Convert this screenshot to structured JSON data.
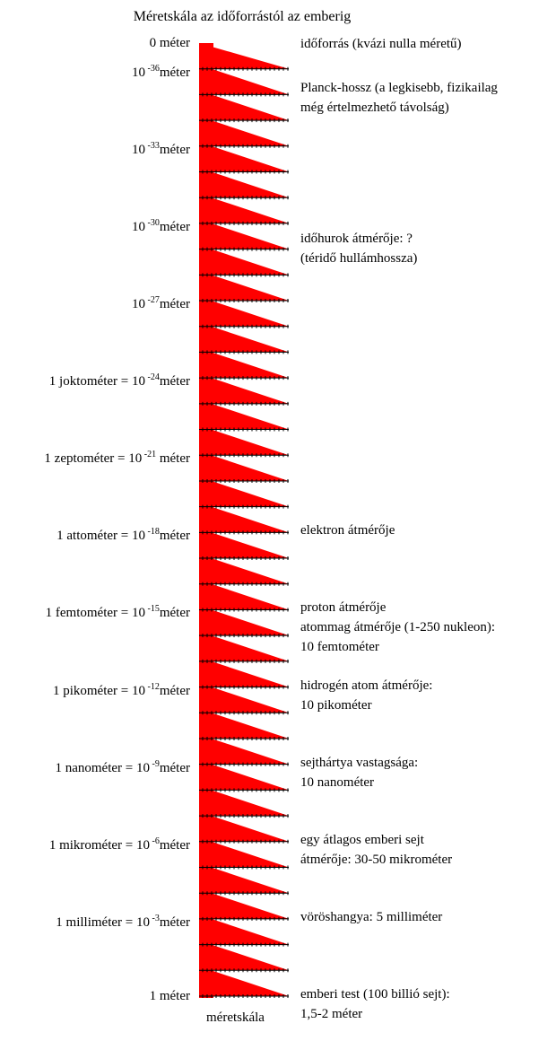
{
  "title": "Méretskála az időforrástól az emberig",
  "scale_label": "méretskála",
  "colors": {
    "fill": "#ff0000",
    "tick": "#000000"
  },
  "triangle_count": 37,
  "left_labels": [
    {
      "prefix": "0 méter",
      "exp": "",
      "suffix": "",
      "level": 0
    },
    {
      "prefix": "10",
      "exp": "-36",
      "suffix": "méter",
      "level": 1
    },
    {
      "prefix": "10",
      "exp": "-33",
      "suffix": "méter",
      "level": 4
    },
    {
      "prefix": "10",
      "exp": "-30",
      "suffix": "méter",
      "level": 7
    },
    {
      "prefix": "10",
      "exp": "-27",
      "suffix": "méter",
      "level": 10
    },
    {
      "prefix": "1 joktométer = 10",
      "exp": "-24",
      "suffix": "méter",
      "level": 13
    },
    {
      "prefix": "1 zeptométer = 10",
      "exp": "-21",
      "suffix": " méter",
      "level": 16
    },
    {
      "prefix": "1 attométer = 10",
      "exp": "-18",
      "suffix": "méter",
      "level": 19
    },
    {
      "prefix": "1 femtométer = 10",
      "exp": "-15",
      "suffix": "méter",
      "level": 22
    },
    {
      "prefix": "1 pikométer = 10",
      "exp": "-12",
      "suffix": "méter",
      "level": 25
    },
    {
      "prefix": "1 nanométer = 10",
      "exp": "-9",
      "suffix": "méter",
      "level": 28
    },
    {
      "prefix": "1 mikrométer = 10",
      "exp": "-6",
      "suffix": "méter",
      "level": 31
    },
    {
      "prefix": "1 milliméter = 10",
      "exp": "-3",
      "suffix": "méter",
      "level": 34
    },
    {
      "prefix": "1 méter",
      "exp": "",
      "suffix": "",
      "level": 37
    }
  ],
  "annotations": [
    {
      "lines": [
        "időforrás (kvázi nulla méretű)"
      ],
      "level": 0
    },
    {
      "lines": [
        "Planck-hossz (a legkisebb, fizikailag",
        "még értelmezhető távolság)"
      ],
      "level": 1
    },
    {
      "lines": [
        "időhurok átmérője: ?",
        "(téridő hullámhossza)"
      ],
      "level": 7
    },
    {
      "lines": [
        "elektron átmérője"
      ],
      "level": 19
    },
    {
      "lines": [
        "proton átmérője",
        "atommag átmérője (1-250 nukleon):",
        "10 femtométer"
      ],
      "level": 22
    },
    {
      "lines": [
        "hidrogén atom átmérője:",
        "10 pikométer"
      ],
      "level": 25
    },
    {
      "lines": [
        "sejthártya vastagsága:",
        "10 nanométer"
      ],
      "level": 28
    },
    {
      "lines": [
        "egy átlagos emberi sejt",
        "átmérője: 30-50 mikrométer"
      ],
      "level": 31
    },
    {
      "lines": [
        "vöröshangya: 5 milliméter"
      ],
      "level": 34
    },
    {
      "lines": [
        "emberi test (100 billió sejt):",
        "1,5-2 méter"
      ],
      "level": 37
    }
  ]
}
